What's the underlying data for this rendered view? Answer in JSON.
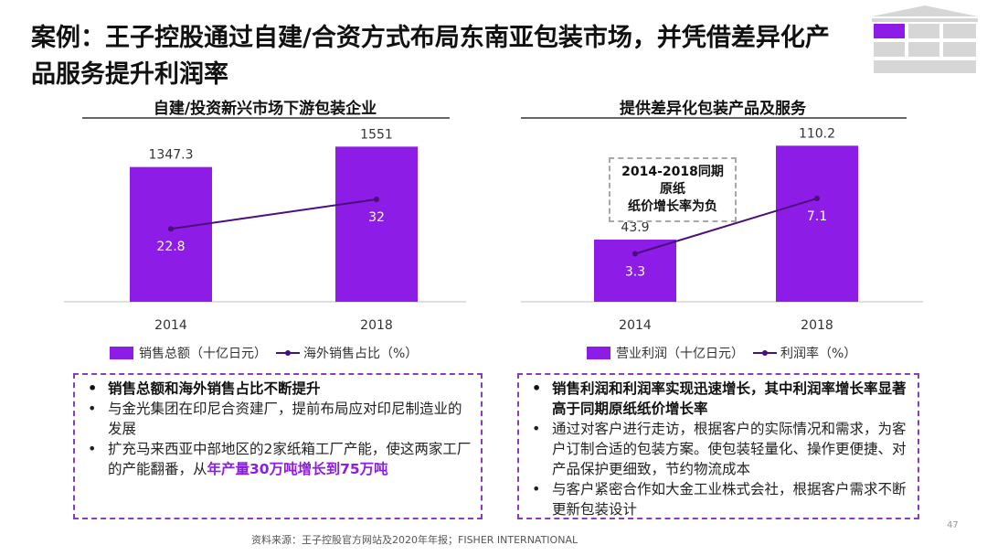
{
  "title": "案例：王子控股通过自建/合资方式布局东南亚包装市场，并凭借差异化产品服务提升利润率",
  "colors": {
    "bar": "#8d1ce6",
    "line": "#4b0f7c",
    "accent_text": "#8d1ce6",
    "box_border": "#8a3db8"
  },
  "chart_data": [
    {
      "type": "bar",
      "title": "自建/投资新兴市场下游包装企业",
      "categories": [
        "2014",
        "2018"
      ],
      "series": [
        {
          "name": "销售总额（十亿日元）",
          "kind": "bar",
          "values": [
            1347.3,
            1551
          ],
          "labels": [
            "1347.3",
            "1551"
          ]
        },
        {
          "name": "海外销售占比（%）",
          "kind": "line",
          "values": [
            22.8,
            32
          ],
          "labels": [
            "22.8",
            "32"
          ]
        }
      ],
      "bar_ylim": [
        0,
        1600
      ],
      "line_ylim": [
        0,
        50
      ]
    },
    {
      "type": "bar",
      "title": "提供差异化包装产品及服务",
      "categories": [
        "2014",
        "2018"
      ],
      "series": [
        {
          "name": "营业利润（十亿日元）",
          "kind": "bar",
          "values": [
            43.9,
            110.2
          ],
          "labels": [
            "43.9",
            "110.2"
          ]
        },
        {
          "name": "利润率（%）",
          "kind": "line",
          "values": [
            3.3,
            7.1
          ],
          "labels": [
            "3.3",
            "7.1"
          ]
        }
      ],
      "bar_ylim": [
        0,
        113
      ],
      "line_ylim": [
        0,
        11
      ],
      "annotation": [
        "2014-2018同期原纸",
        "纸价增长率为负"
      ]
    }
  ],
  "box_left": {
    "b1": "销售总额和海外销售占比不断提升",
    "b2": "与金光集团在印尼合资建厂，提前布局应对印尼制造业的发展",
    "b3_pre": "扩充马来西亚中部地区的2家纸箱工厂产能，使这两家工厂的产能翻番，从",
    "b3_hl": "年产量30万吨增长到75万吨"
  },
  "box_right": {
    "b1": "销售利润和利润率实现迅速增长，其中利润率增长率显著高于同期原纸纸价增长率",
    "b2": "通过对客户进行走访，根据客户的实际情况和需求，为客户订制合适的包装方案。使包装轻量化、操作更便捷、对产品保护更细致，节约物流成本",
    "b3": "与客户紧密合作如大金工业株式会社，根据客户需求不断更新包装设计"
  },
  "source": "资料来源：王子控股官方网站及2020年年报；FISHER INTERNATIONAL",
  "page_number": "47"
}
